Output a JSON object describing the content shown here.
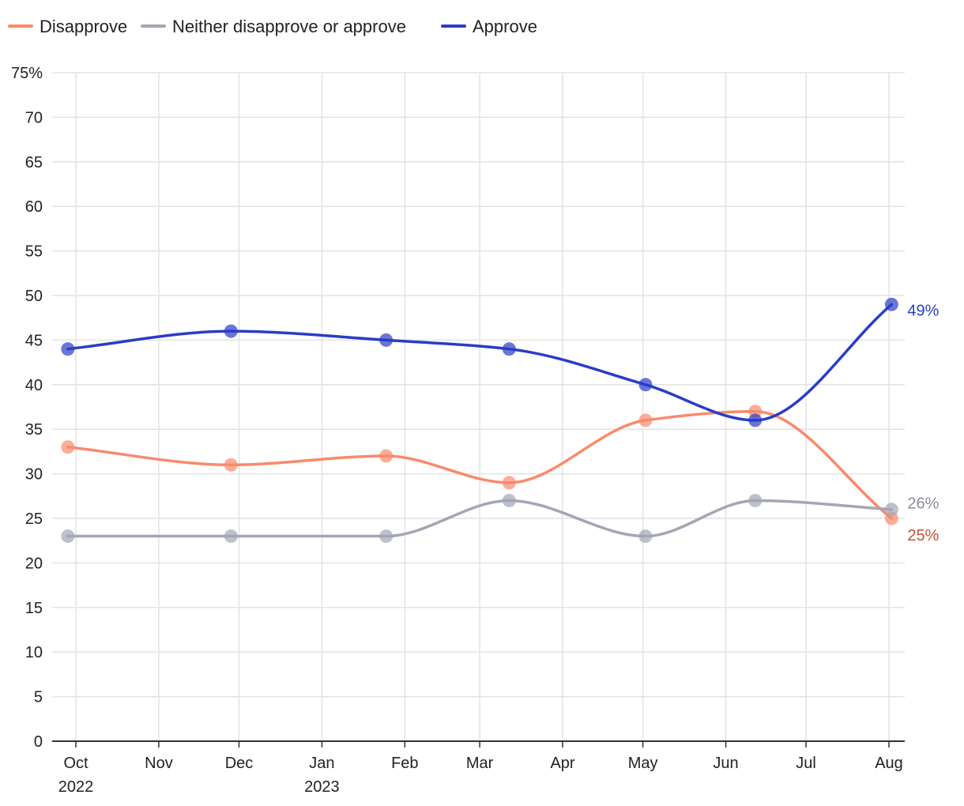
{
  "chart_data": {
    "type": "line",
    "title": "",
    "xlabel": "",
    "ylabel": "",
    "ylim": [
      0,
      75
    ],
    "y_ticks": [
      0,
      5,
      10,
      15,
      20,
      25,
      30,
      35,
      40,
      45,
      50,
      55,
      60,
      65,
      70,
      75
    ],
    "y_tick_labels": [
      "0",
      "5",
      "10",
      "15",
      "20",
      "25",
      "30",
      "35",
      "40",
      "45",
      "50",
      "55",
      "60",
      "65",
      "70",
      "75%"
    ],
    "xlim": [
      "2022-10-01",
      "2023-08-01"
    ],
    "x_ticks": [
      {
        "date": "2022-10-01",
        "label": "Oct",
        "sublabel": "2022"
      },
      {
        "date": "2022-11-01",
        "label": "Nov",
        "sublabel": ""
      },
      {
        "date": "2022-12-01",
        "label": "Dec",
        "sublabel": ""
      },
      {
        "date": "2023-01-01",
        "label": "Jan",
        "sublabel": "2023"
      },
      {
        "date": "2023-02-01",
        "label": "Feb",
        "sublabel": ""
      },
      {
        "date": "2023-03-01",
        "label": "Mar",
        "sublabel": ""
      },
      {
        "date": "2023-04-01",
        "label": "Apr",
        "sublabel": ""
      },
      {
        "date": "2023-05-01",
        "label": "May",
        "sublabel": ""
      },
      {
        "date": "2023-06-01",
        "label": "Jun",
        "sublabel": ""
      },
      {
        "date": "2023-07-01",
        "label": "Jul",
        "sublabel": ""
      },
      {
        "date": "2023-08-01",
        "label": "Aug",
        "sublabel": ""
      }
    ],
    "grid": true,
    "legend_position": "top-left",
    "series": [
      {
        "name": "Disapprove",
        "color": "#f98a6b",
        "label_color": "#c8502e",
        "end_label": "25%",
        "points": [
          {
            "x": "2022-09-28",
            "y": 33
          },
          {
            "x": "2022-11-28",
            "y": 31
          },
          {
            "x": "2023-01-25",
            "y": 32
          },
          {
            "x": "2023-03-12",
            "y": 29
          },
          {
            "x": "2023-05-02",
            "y": 36
          },
          {
            "x": "2023-06-12",
            "y": 37
          },
          {
            "x": "2023-08-02",
            "y": 25
          }
        ]
      },
      {
        "name": "Neither disapprove or approve",
        "color": "#a3a6b4",
        "label_color": "#8a8d99",
        "end_label": "26%",
        "points": [
          {
            "x": "2022-09-28",
            "y": 23
          },
          {
            "x": "2022-11-28",
            "y": 23
          },
          {
            "x": "2023-01-25",
            "y": 23
          },
          {
            "x": "2023-03-12",
            "y": 27
          },
          {
            "x": "2023-05-02",
            "y": 23
          },
          {
            "x": "2023-06-12",
            "y": 27
          },
          {
            "x": "2023-08-02",
            "y": 26
          }
        ]
      },
      {
        "name": "Approve",
        "color": "#2a3cc7",
        "label_color": "#2a3cc7",
        "end_label": "49%",
        "points": [
          {
            "x": "2022-09-28",
            "y": 44
          },
          {
            "x": "2022-11-28",
            "y": 46
          },
          {
            "x": "2023-01-25",
            "y": 45
          },
          {
            "x": "2023-03-12",
            "y": 44
          },
          {
            "x": "2023-05-02",
            "y": 40
          },
          {
            "x": "2023-06-12",
            "y": 36
          },
          {
            "x": "2023-08-02",
            "y": 49
          }
        ]
      }
    ]
  }
}
